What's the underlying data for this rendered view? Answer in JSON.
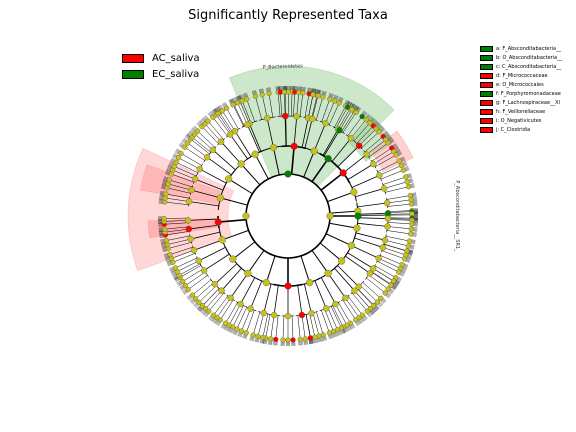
{
  "title": "Significantly Represented Taxa",
  "colors": {
    "ac": "#ff0000",
    "ec": "#008000",
    "node_default": "#c7c219",
    "ac_shade": "#ff9a9a",
    "ec_shade": "#9ccf95"
  },
  "legend": [
    {
      "label": "AC_saliva",
      "color": "#ff0000"
    },
    {
      "label": "EC_saliva",
      "color": "#008000"
    }
  ],
  "taxa_legend": [
    {
      "label": "a: F_Absconditabacteria__",
      "color": "#008000"
    },
    {
      "label": "b: O_Absconditabacteria__",
      "color": "#008000"
    },
    {
      "label": "c: C_Absconditabacteria__",
      "color": "#008000"
    },
    {
      "label": "d: F_Micrococcaceae",
      "color": "#ff0000"
    },
    {
      "label": "e: O_Micrococcales",
      "color": "#ff0000"
    },
    {
      "label": "f: F_Porphyromonadaceae",
      "color": "#008000"
    },
    {
      "label": "g: F_Lachnospiraceae__Xl",
      "color": "#ff0000"
    },
    {
      "label": "h: F_Veillonellaceae",
      "color": "#ff0000"
    },
    {
      "label": "i: O_Negativicutes",
      "color": "#ff0000"
    },
    {
      "label": "j: C_Clostridia",
      "color": "#ff0000"
    }
  ],
  "clade_labels": {
    "bacteroidetes": "P_Bacteroidetes",
    "absconditabacteria": "P_Absconditabacteria__SR1_"
  }
}
